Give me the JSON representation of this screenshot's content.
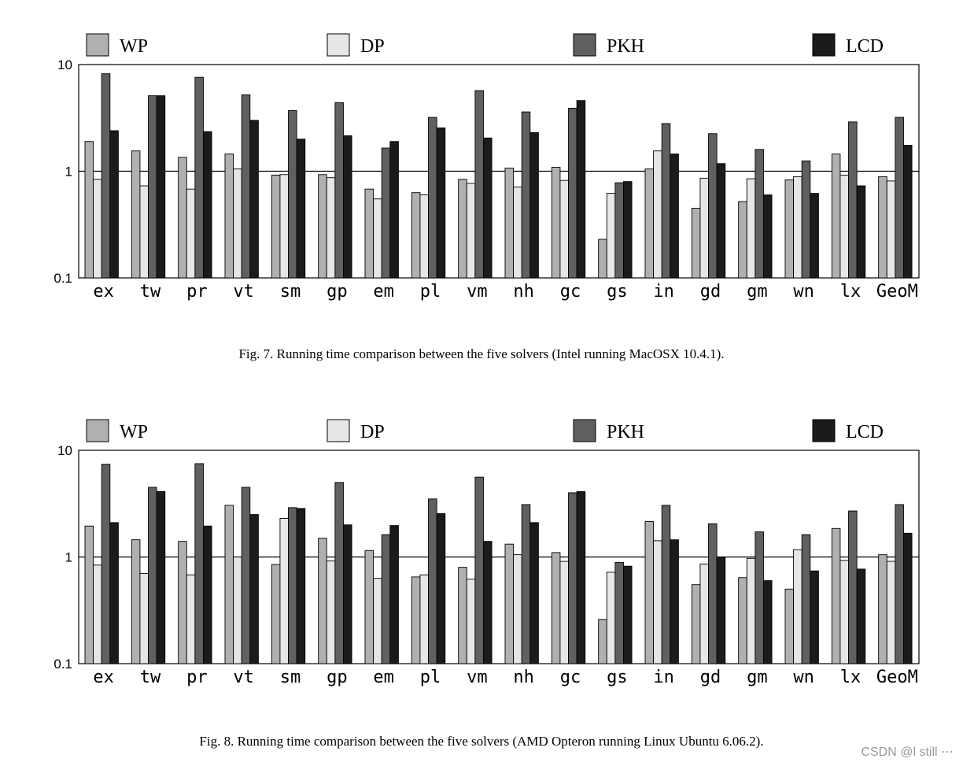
{
  "colors": {
    "WP": "#b0b0b0",
    "DP": "#e6e6e6",
    "PKH": "#606060",
    "LCD": "#1b1b1b"
  },
  "chart_data": [
    {
      "type": "bar",
      "scale": "log",
      "ylim": [
        0.1,
        10
      ],
      "yticks": [
        "10",
        "1",
        "0.1"
      ],
      "categories": [
        "ex",
        "tw",
        "pr",
        "vt",
        "sm",
        "gp",
        "em",
        "pl",
        "vm",
        "nh",
        "gc",
        "gs",
        "in",
        "gd",
        "gm",
        "wn",
        "lx",
        "GeoM"
      ],
      "series": [
        {
          "name": "WP",
          "values": [
            1.9,
            1.55,
            1.35,
            1.45,
            0.92,
            0.93,
            0.68,
            0.63,
            0.84,
            1.07,
            1.09,
            0.23,
            1.05,
            0.45,
            0.52,
            0.83,
            1.45,
            0.89
          ]
        },
        {
          "name": "DP",
          "values": [
            0.84,
            0.73,
            0.68,
            1.05,
            0.93,
            0.87,
            0.55,
            0.6,
            0.77,
            0.71,
            0.82,
            0.62,
            1.55,
            0.86,
            0.85,
            0.89,
            0.92,
            0.81
          ]
        },
        {
          "name": "PKH",
          "values": [
            8.2,
            5.1,
            7.6,
            5.2,
            3.7,
            4.4,
            1.65,
            3.2,
            5.7,
            3.6,
            3.9,
            0.78,
            2.8,
            2.25,
            1.6,
            1.25,
            2.9,
            3.2
          ]
        },
        {
          "name": "LCD",
          "values": [
            2.4,
            5.1,
            2.35,
            3.0,
            2.0,
            2.15,
            1.9,
            2.55,
            2.05,
            2.3,
            4.6,
            0.8,
            1.45,
            1.18,
            0.6,
            0.62,
            0.73,
            1.75
          ]
        }
      ]
    },
    {
      "type": "bar",
      "scale": "log",
      "ylim": [
        0.1,
        10
      ],
      "yticks": [
        "10",
        "1",
        "0.1"
      ],
      "categories": [
        "ex",
        "tw",
        "pr",
        "vt",
        "sm",
        "gp",
        "em",
        "pl",
        "vm",
        "nh",
        "gc",
        "gs",
        "in",
        "gd",
        "gm",
        "wn",
        "lx",
        "GeoM"
      ],
      "series": [
        {
          "name": "WP",
          "values": [
            1.95,
            1.45,
            1.4,
            3.05,
            0.85,
            1.5,
            1.15,
            0.65,
            0.8,
            1.32,
            1.1,
            0.26,
            2.15,
            0.55,
            0.64,
            0.5,
            1.85,
            1.05
          ]
        },
        {
          "name": "DP",
          "values": [
            0.84,
            0.7,
            0.68,
            1.0,
            2.3,
            0.92,
            0.63,
            0.68,
            0.62,
            1.05,
            0.91,
            0.72,
            1.42,
            0.86,
            0.97,
            1.17,
            0.93,
            0.91
          ]
        },
        {
          "name": "PKH",
          "values": [
            7.4,
            4.5,
            7.5,
            4.5,
            2.9,
            5.0,
            1.62,
            3.5,
            5.6,
            3.1,
            4.0,
            0.89,
            3.05,
            2.05,
            1.72,
            1.62,
            2.7,
            3.1
          ]
        },
        {
          "name": "LCD",
          "values": [
            2.1,
            4.1,
            1.95,
            2.5,
            2.85,
            2.0,
            1.97,
            2.55,
            1.4,
            2.1,
            4.1,
            0.82,
            1.45,
            1.0,
            0.6,
            0.74,
            0.77,
            1.67
          ]
        }
      ]
    }
  ],
  "captions": {
    "fig7": "Fig. 7.    Running time comparison between the five solvers (Intel running MacOSX 10.4.1).",
    "fig8": "Fig. 8.    Running time comparison between the five solvers (AMD Opteron running Linux Ubuntu 6.06.2)."
  },
  "watermark": "CSDN @l still ⋯"
}
